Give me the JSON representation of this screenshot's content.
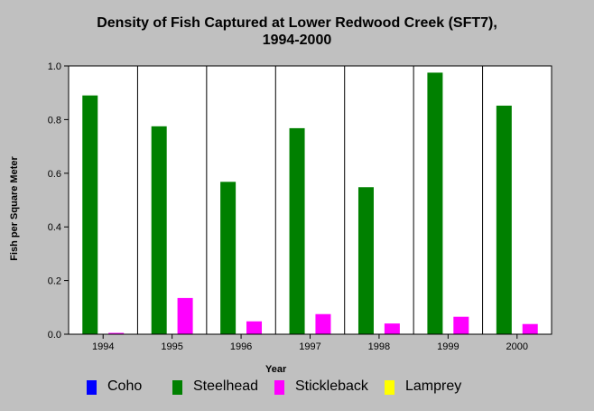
{
  "chart_data": {
    "type": "bar",
    "title": "Density of Fish Captured at Lower Redwood Creek (SFT7),",
    "subtitle": "1994-2000",
    "xlabel": "Year",
    "ylabel": "Fish per Square Meter",
    "categories": [
      "1994",
      "1995",
      "1996",
      "1997",
      "1998",
      "1999",
      "2000"
    ],
    "ylim": [
      0,
      1.0
    ],
    "yticks": [
      "0.0",
      "0.2",
      "0.4",
      "0.6",
      "0.8",
      "1.0"
    ],
    "grid": true,
    "legend_position": "bottom",
    "series": [
      {
        "name": "Coho",
        "color": "#0000ff",
        "values": [
          0,
          0,
          0,
          0,
          0,
          0,
          0
        ]
      },
      {
        "name": "Steelhead",
        "color": "#008000",
        "values": [
          0.89,
          0.775,
          0.568,
          0.768,
          0.548,
          0.975,
          0.852
        ]
      },
      {
        "name": "Stickleback",
        "color": "#ff00ff",
        "values": [
          0.005,
          0.135,
          0.048,
          0.075,
          0.04,
          0.065,
          0.038
        ]
      },
      {
        "name": "Lamprey",
        "color": "#ffff00",
        "values": [
          0,
          0,
          0,
          0,
          0,
          0,
          0
        ]
      }
    ]
  }
}
